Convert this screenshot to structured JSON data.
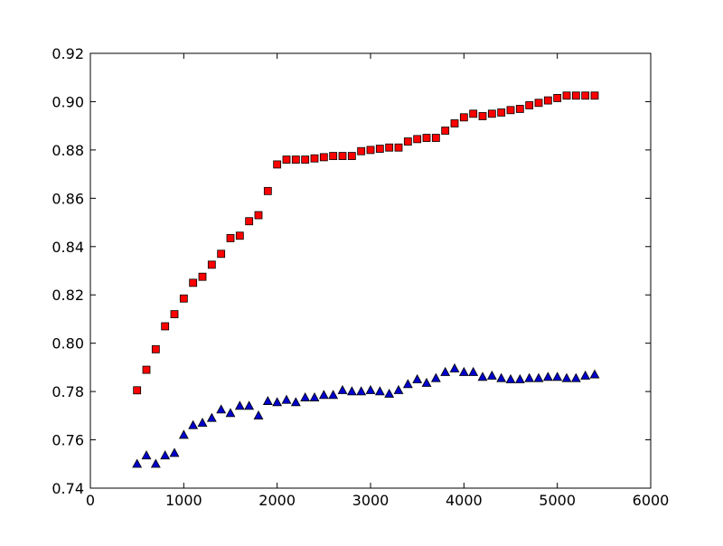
{
  "chart_data": {
    "type": "scatter",
    "title": "",
    "xlabel": "",
    "ylabel": "",
    "xlim": [
      0,
      6000
    ],
    "ylim": [
      0.74,
      0.92
    ],
    "x_ticks": [
      0,
      1000,
      2000,
      3000,
      4000,
      5000,
      6000
    ],
    "y_ticks": [
      0.74,
      0.76,
      0.78,
      0.8,
      0.82,
      0.84,
      0.86,
      0.88,
      0.9,
      0.92
    ],
    "x_tick_labels": [
      "0",
      "1000",
      "2000",
      "3000",
      "4000",
      "5000",
      "6000"
    ],
    "y_tick_labels": [
      "0.74",
      "0.76",
      "0.78",
      "0.80",
      "0.82",
      "0.84",
      "0.86",
      "0.88",
      "0.90",
      "0.92"
    ],
    "grid": false,
    "x": [
      500,
      600,
      700,
      800,
      900,
      1000,
      1100,
      1200,
      1300,
      1400,
      1500,
      1600,
      1700,
      1800,
      1900,
      2000,
      2100,
      2200,
      2300,
      2400,
      2500,
      2600,
      2700,
      2800,
      2900,
      3000,
      3100,
      3200,
      3300,
      3400,
      3500,
      3600,
      3700,
      3800,
      3900,
      4000,
      4100,
      4200,
      4300,
      4400,
      4500,
      4600,
      4700,
      4800,
      4900,
      5000,
      5100,
      5200,
      5300,
      5400
    ],
    "series": [
      {
        "marker": "square",
        "color": "#ff0000",
        "values": [
          0.7805,
          0.789,
          0.7975,
          0.807,
          0.812,
          0.8185,
          0.825,
          0.8275,
          0.8325,
          0.837,
          0.8435,
          0.8445,
          0.8505,
          0.853,
          0.863,
          0.874,
          0.876,
          0.876,
          0.876,
          0.8765,
          0.877,
          0.8775,
          0.8775,
          0.8775,
          0.8795,
          0.88,
          0.8805,
          0.881,
          0.881,
          0.8835,
          0.8845,
          0.885,
          0.885,
          0.888,
          0.891,
          0.8935,
          0.895,
          0.894,
          0.895,
          0.8955,
          0.8965,
          0.897,
          0.8985,
          0.8995,
          0.9005,
          0.9015,
          0.9025,
          0.9025,
          0.9025,
          0.9025
        ]
      },
      {
        "marker": "triangle",
        "color": "#0000cc",
        "values": [
          0.75,
          0.7535,
          0.75,
          0.7535,
          0.7545,
          0.762,
          0.766,
          0.767,
          0.769,
          0.7725,
          0.771,
          0.774,
          0.774,
          0.77,
          0.776,
          0.7755,
          0.7765,
          0.7755,
          0.7775,
          0.7775,
          0.7785,
          0.7785,
          0.7805,
          0.78,
          0.78,
          0.7805,
          0.78,
          0.779,
          0.7805,
          0.783,
          0.785,
          0.7835,
          0.7855,
          0.788,
          0.7895,
          0.788,
          0.788,
          0.786,
          0.7865,
          0.7855,
          0.785,
          0.785,
          0.7855,
          0.7855,
          0.786,
          0.786,
          0.7855,
          0.7855,
          0.7865,
          0.787
        ]
      }
    ]
  }
}
